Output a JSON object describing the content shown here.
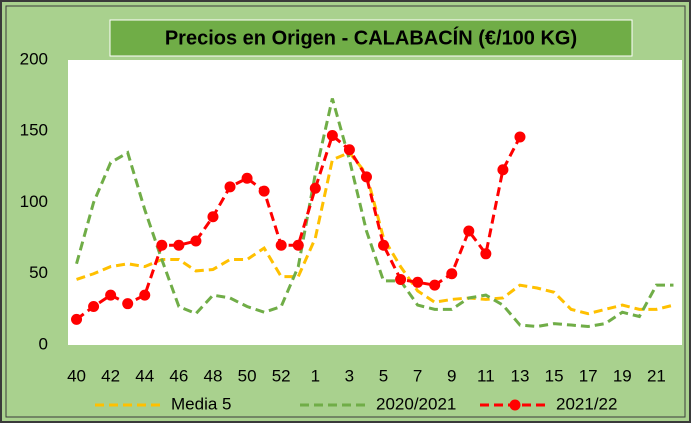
{
  "chart_data": {
    "type": "line",
    "title": "Precios en Origen - CALABACÍN (€/100 KG)",
    "categories": [
      "40",
      null,
      "42",
      null,
      "44",
      null,
      "46",
      null,
      "48",
      null,
      "50",
      null,
      "52",
      null,
      "1",
      null,
      "3",
      null,
      "5",
      null,
      "7",
      null,
      "9",
      null,
      "11",
      null,
      "13",
      null,
      "15",
      null,
      "17",
      null,
      "19",
      null,
      "21",
      null
    ],
    "series": [
      {
        "name": "Media 5",
        "color": "#ffc000",
        "dash": true,
        "markers": false,
        "values": [
          46,
          50,
          55,
          57,
          55,
          60,
          60,
          52,
          53,
          60,
          60,
          68,
          48,
          48,
          75,
          130,
          135,
          120,
          75,
          55,
          38,
          30,
          32,
          33,
          32,
          33,
          42,
          40,
          37,
          25,
          22,
          25,
          28,
          25,
          25,
          28
        ]
      },
      {
        "name": "2020/2021",
        "color": "#70ad47",
        "dash": true,
        "markers": false,
        "values": [
          57,
          100,
          128,
          135,
          95,
          60,
          27,
          22,
          35,
          33,
          27,
          23,
          27,
          55,
          120,
          173,
          130,
          80,
          45,
          45,
          28,
          25,
          25,
          33,
          35,
          28,
          14,
          13,
          15,
          14,
          13,
          15,
          23,
          20,
          42,
          42
        ]
      },
      {
        "name": "2021/22",
        "color": "#ff0000",
        "dash": true,
        "markers": true,
        "values": [
          18,
          27,
          35,
          29,
          35,
          70,
          70,
          73,
          90,
          111,
          117,
          108,
          70,
          70,
          110,
          147,
          137,
          118,
          70,
          46,
          44,
          42,
          50,
          80,
          64,
          123,
          146,
          null,
          null,
          null,
          null,
          null,
          null,
          null,
          null,
          null
        ]
      }
    ],
    "ylim": [
      0,
      200
    ],
    "yticks": [
      0,
      50,
      100,
      150,
      200
    ],
    "grid": false
  }
}
